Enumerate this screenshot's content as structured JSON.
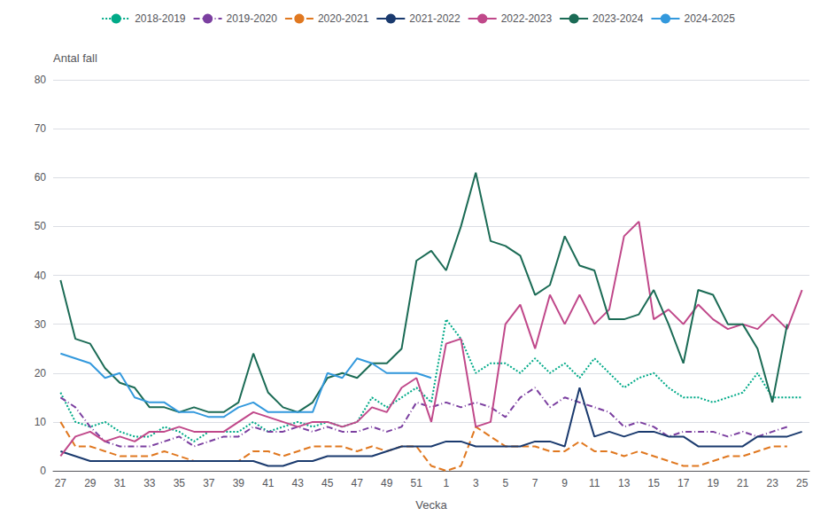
{
  "chart_data": {
    "type": "line",
    "xlabel": "Vecka",
    "ylabel": "Antal fall",
    "categories": [
      "27",
      null,
      "29",
      null,
      "31",
      null,
      "33",
      null,
      "35",
      null,
      "37",
      null,
      "39",
      null,
      "41",
      null,
      "43",
      null,
      "45",
      null,
      "47",
      null,
      "49",
      null,
      "51",
      null,
      "1",
      null,
      "3",
      null,
      "5",
      null,
      "7",
      null,
      "9",
      null,
      "11",
      null,
      "13",
      null,
      "15",
      null,
      "17",
      null,
      "19",
      null,
      "21",
      null,
      "23",
      null,
      "25"
    ],
    "ylim": [
      0,
      80
    ],
    "yticks": [
      0,
      10,
      20,
      30,
      40,
      50,
      60,
      70,
      80
    ],
    "grid": true,
    "legend": "top",
    "series": [
      {
        "name": "2018-2019",
        "color": "#00AA88",
        "line_style": "dotted",
        "values": [
          16,
          10,
          9,
          10,
          8,
          7,
          7,
          9,
          8,
          6,
          8,
          8,
          8,
          10,
          8,
          9,
          10,
          9,
          10,
          9,
          10,
          15,
          13,
          15,
          17,
          14,
          31,
          27,
          20,
          22,
          22,
          20,
          23,
          20,
          22,
          19,
          23,
          20,
          17,
          19,
          20,
          17,
          15,
          15,
          14,
          15,
          16,
          20,
          15,
          15,
          15
        ]
      },
      {
        "name": "2019-2020",
        "color": "#7B3FA0",
        "line_style": "dashdot",
        "values": [
          15,
          13,
          9,
          6,
          5,
          5,
          5,
          6,
          7,
          5,
          6,
          7,
          7,
          9,
          8,
          8,
          9,
          8,
          9,
          8,
          8,
          9,
          8,
          9,
          14,
          13,
          14,
          13,
          14,
          13,
          11,
          15,
          17,
          13,
          15,
          14,
          13,
          12,
          9,
          10,
          9,
          7,
          8,
          8,
          8,
          7,
          8,
          7,
          8,
          9,
          null
        ]
      },
      {
        "name": "2020-2021",
        "color": "#E07820",
        "line_style": "dashed",
        "values": [
          10,
          5,
          5,
          4,
          3,
          3,
          3,
          4,
          3,
          2,
          2,
          2,
          2,
          4,
          4,
          3,
          4,
          5,
          5,
          5,
          4,
          5,
          4,
          5,
          5,
          1,
          0,
          1,
          9,
          7,
          5,
          5,
          5,
          4,
          4,
          6,
          4,
          4,
          3,
          4,
          3,
          2,
          1,
          1,
          2,
          3,
          3,
          4,
          5,
          5,
          null
        ]
      },
      {
        "name": "2021-2022",
        "color": "#1A3A6E",
        "line_style": "solid",
        "values": [
          4,
          3,
          2,
          2,
          2,
          2,
          2,
          2,
          2,
          2,
          2,
          2,
          2,
          2,
          1,
          1,
          2,
          2,
          3,
          3,
          3,
          3,
          4,
          5,
          5,
          5,
          6,
          6,
          5,
          5,
          5,
          5,
          6,
          6,
          5,
          17,
          7,
          8,
          7,
          8,
          8,
          7,
          7,
          5,
          5,
          5,
          5,
          7,
          7,
          7,
          8
        ]
      },
      {
        "name": "2022-2023",
        "color": "#C0488A",
        "line_style": "solid",
        "values": [
          3,
          7,
          8,
          6,
          7,
          6,
          8,
          8,
          9,
          8,
          8,
          8,
          10,
          12,
          11,
          10,
          9,
          10,
          10,
          9,
          10,
          13,
          12,
          17,
          19,
          10,
          26,
          27,
          9,
          10,
          30,
          34,
          25,
          36,
          30,
          36,
          30,
          33,
          48,
          51,
          31,
          33,
          30,
          34,
          31,
          29,
          30,
          29,
          32,
          29,
          37
        ]
      },
      {
        "name": "2023-2024",
        "color": "#1B6B55",
        "line_style": "solid",
        "values": [
          39,
          27,
          26,
          21,
          18,
          17,
          13,
          13,
          12,
          13,
          12,
          12,
          14,
          24,
          16,
          13,
          12,
          14,
          19,
          20,
          19,
          22,
          22,
          25,
          43,
          45,
          41,
          50,
          61,
          47,
          46,
          44,
          36,
          38,
          48,
          42,
          41,
          31,
          31,
          32,
          37,
          30,
          22,
          37,
          36,
          30,
          30,
          25,
          14,
          30,
          null
        ]
      },
      {
        "name": "2024-2025",
        "color": "#3399DD",
        "line_style": "solid",
        "values": [
          24,
          23,
          22,
          19,
          20,
          15,
          14,
          14,
          12,
          12,
          11,
          11,
          13,
          14,
          12,
          12,
          12,
          12,
          20,
          19,
          23,
          22,
          20,
          20,
          20,
          19,
          null,
          null,
          null,
          null,
          null,
          null,
          null,
          null,
          null,
          null,
          null,
          null,
          null,
          null,
          null,
          null,
          null,
          null,
          null,
          null,
          null,
          null,
          null,
          null,
          null
        ]
      }
    ]
  }
}
